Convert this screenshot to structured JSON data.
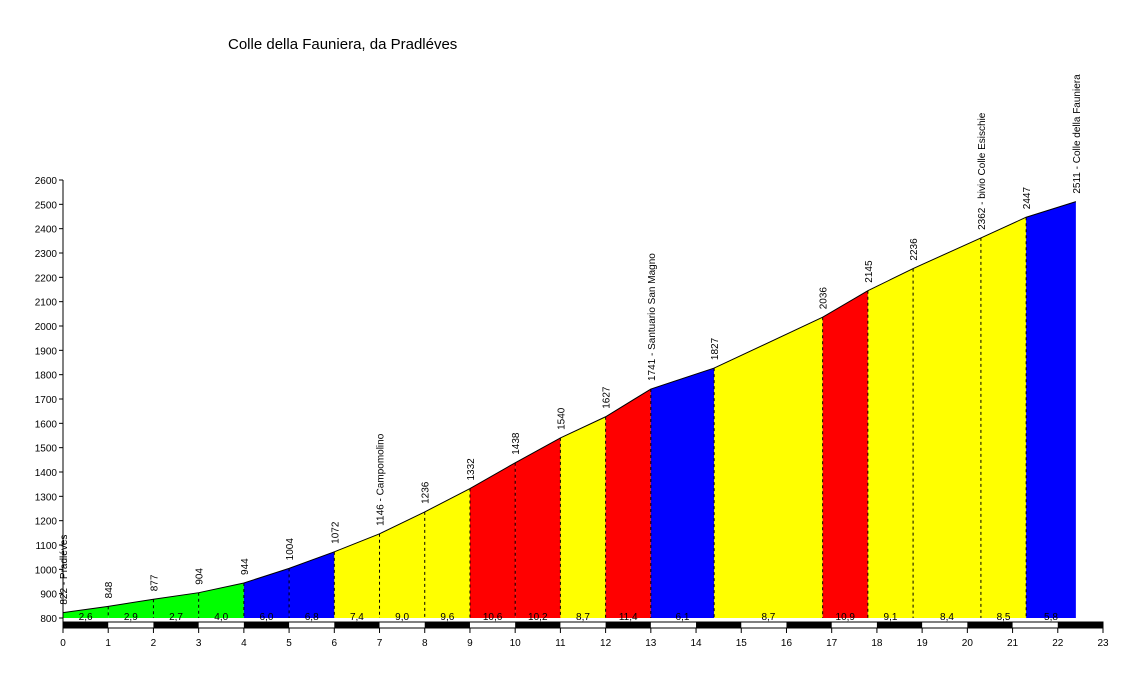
{
  "chart_data": {
    "type": "area",
    "title": "Colle della Fauniera, da Pradléves",
    "xlabel": "",
    "ylabel": "",
    "xlim": [
      0,
      23
    ],
    "ylim": [
      800,
      2600
    ],
    "xticks": [
      0,
      1,
      2,
      3,
      4,
      5,
      6,
      7,
      8,
      9,
      10,
      11,
      12,
      13,
      14,
      15,
      16,
      17,
      18,
      19,
      20,
      21,
      22,
      23
    ],
    "yticks": [
      800,
      900,
      1000,
      1100,
      1200,
      1300,
      1400,
      1500,
      1600,
      1700,
      1800,
      1900,
      2000,
      2100,
      2200,
      2300,
      2400,
      2500,
      2600
    ],
    "grid": false,
    "points": [
      {
        "x": 0,
        "y": 822,
        "label": "822 - Pradléves"
      },
      {
        "x": 1,
        "y": 848,
        "label": "848"
      },
      {
        "x": 2,
        "y": 877,
        "label": "877"
      },
      {
        "x": 3,
        "y": 904,
        "label": "904"
      },
      {
        "x": 4,
        "y": 944,
        "label": "944"
      },
      {
        "x": 5,
        "y": 1004,
        "label": "1004"
      },
      {
        "x": 6,
        "y": 1072,
        "label": "1072"
      },
      {
        "x": 7,
        "y": 1146,
        "label": "1146 - Campomolino"
      },
      {
        "x": 8,
        "y": 1236,
        "label": "1236"
      },
      {
        "x": 9,
        "y": 1332,
        "label": "1332"
      },
      {
        "x": 10,
        "y": 1438,
        "label": "1438"
      },
      {
        "x": 11,
        "y": 1540,
        "label": "1540"
      },
      {
        "x": 12,
        "y": 1627,
        "label": "1627"
      },
      {
        "x": 13,
        "y": 1741,
        "label": "1741 - Santuario San Magno"
      },
      {
        "x": 14.4,
        "y": 1827,
        "label": "1827"
      },
      {
        "x": 16.8,
        "y": 2036,
        "label": "2036"
      },
      {
        "x": 17.8,
        "y": 2145,
        "label": "2145"
      },
      {
        "x": 18.8,
        "y": 2236,
        "label": "2236"
      },
      {
        "x": 20.3,
        "y": 2362,
        "label": "2362 - bivio Colle Esischie"
      },
      {
        "x": 21.3,
        "y": 2447,
        "label": "2447"
      },
      {
        "x": 22.4,
        "y": 2511,
        "label": "2511 - Colle della Fauniera"
      }
    ],
    "segments": [
      {
        "from": 0,
        "to": 1,
        "gradient": "2,6",
        "color": "#00ff00"
      },
      {
        "from": 1,
        "to": 2,
        "gradient": "2,9",
        "color": "#00ff00"
      },
      {
        "from": 2,
        "to": 3,
        "gradient": "2,7",
        "color": "#00ff00"
      },
      {
        "from": 3,
        "to": 4,
        "gradient": "4,0",
        "color": "#00ff00"
      },
      {
        "from": 4,
        "to": 5,
        "gradient": "6,0",
        "color": "#0000ff"
      },
      {
        "from": 5,
        "to": 6,
        "gradient": "6,8",
        "color": "#0000ff"
      },
      {
        "from": 6,
        "to": 7,
        "gradient": "7,4",
        "color": "#ffff00"
      },
      {
        "from": 7,
        "to": 8,
        "gradient": "9,0",
        "color": "#ffff00"
      },
      {
        "from": 8,
        "to": 9,
        "gradient": "9,6",
        "color": "#ffff00"
      },
      {
        "from": 9,
        "to": 10,
        "gradient": "10,6",
        "color": "#ff0000"
      },
      {
        "from": 10,
        "to": 11,
        "gradient": "10,2",
        "color": "#ff0000"
      },
      {
        "from": 11,
        "to": 12,
        "gradient": "8,7",
        "color": "#ffff00"
      },
      {
        "from": 12,
        "to": 13,
        "gradient": "11,4",
        "color": "#ff0000"
      },
      {
        "from": 13,
        "to": 14.4,
        "gradient": "6,1",
        "color": "#0000ff"
      },
      {
        "from": 14.4,
        "to": 16.8,
        "gradient": "8,7",
        "color": "#ffff00"
      },
      {
        "from": 16.8,
        "to": 17.8,
        "gradient": "10,9",
        "color": "#ff0000"
      },
      {
        "from": 17.8,
        "to": 18.8,
        "gradient": "9,1",
        "color": "#ffff00"
      },
      {
        "from": 18.8,
        "to": 20.3,
        "gradient": "8,4",
        "color": "#ffff00"
      },
      {
        "from": 20.3,
        "to": 21.3,
        "gradient": "8,5",
        "color": "#ffff00"
      },
      {
        "from": 21.3,
        "to": 22.4,
        "gradient": "5,8",
        "color": "#0000ff"
      }
    ]
  }
}
